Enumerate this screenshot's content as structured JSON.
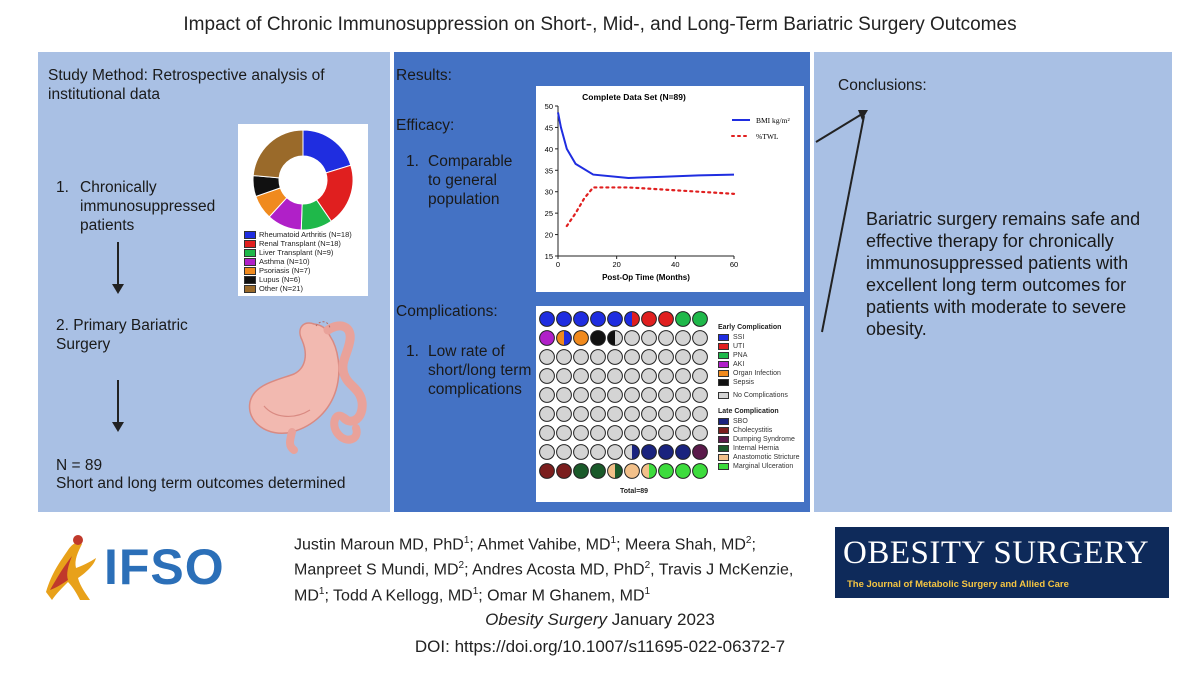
{
  "title": "Impact of Chronic Immunosuppression on Short-, Mid-, and Long-Term Bariatric Surgery Outcomes",
  "left": {
    "method": "Study Method: Retrospective analysis of institutional data",
    "step1_num": "1.",
    "step1": "Chronically immunosuppressed patients",
    "step2": "2. Primary Bariatric Surgery",
    "n": "N = 89",
    "outcome": "Short and long term outcomes determined",
    "donut_legend": [
      {
        "label": "Rheumatoid Arthritis (N=18)",
        "color": "#1f2de0"
      },
      {
        "label": "Renal Transplant (N=18)",
        "color": "#e01f1f"
      },
      {
        "label": "Liver Transplant (N=9)",
        "color": "#1fb84a"
      },
      {
        "label": "Asthma (N=10)",
        "color": "#b020c8"
      },
      {
        "label": "Psoriasis (N=7)",
        "color": "#f08a1e"
      },
      {
        "label": "Lupus (N=6)",
        "color": "#111111"
      },
      {
        "label": "Other (N=21)",
        "color": "#9a6a2a"
      }
    ],
    "donut_values": [
      18,
      18,
      9,
      10,
      7,
      6,
      21
    ]
  },
  "middle": {
    "results": "Results:",
    "efficacy": "Efficacy:",
    "eff_num": "1.",
    "eff_item": "Comparable to general population",
    "complications": "Complications:",
    "comp_num": "1.",
    "comp_item": "Low rate of short/long term complications"
  },
  "chart_data": {
    "type": "line",
    "title": "Complete Data Set (N=89)",
    "xlabel": "Post-Op Time (Months)",
    "ylabel": "",
    "xlim": [
      0,
      60
    ],
    "ylim": [
      15,
      50
    ],
    "xticks": [
      0,
      20,
      40,
      60
    ],
    "yticks": [
      15,
      20,
      25,
      30,
      35,
      40,
      45,
      50
    ],
    "series": [
      {
        "name": "BMI kg/m²",
        "style": "solid",
        "color": "#1f2de0",
        "x": [
          0,
          1,
          3,
          6,
          12,
          24,
          36,
          48,
          60
        ],
        "y": [
          48.5,
          45,
          40,
          36.5,
          34,
          33.2,
          33.5,
          33.8,
          34
        ]
      },
      {
        "name": "%TWL",
        "style": "dotted",
        "color": "#e01f1f",
        "x": [
          3,
          6,
          9,
          12,
          18,
          24,
          36,
          48,
          60
        ],
        "y": [
          22,
          25,
          28.5,
          31,
          31,
          31,
          30.5,
          30,
          29.5
        ]
      }
    ]
  },
  "grid": {
    "total": "Total=89",
    "early_title": "Early Complication",
    "early": [
      {
        "label": "SSI",
        "color": "#1f2de0"
      },
      {
        "label": "UTI",
        "color": "#e01f1f"
      },
      {
        "label": "PNA",
        "color": "#1fb84a"
      },
      {
        "label": "AKI",
        "color": "#b020c8"
      },
      {
        "label": "Organ Infection",
        "color": "#f08a1e"
      },
      {
        "label": "Sepsis",
        "color": "#111111"
      }
    ],
    "none_label": "No Complications",
    "none_color": "#d4d4d4",
    "late_title": "Late Complication",
    "late": [
      {
        "label": "SBO",
        "color": "#1a237e"
      },
      {
        "label": "Cholecystitis",
        "color": "#7b1e1e"
      },
      {
        "label": "Dumping Syndrome",
        "color": "#5a1a4a"
      },
      {
        "label": "Internal Hernia",
        "color": "#1a5a2a"
      },
      {
        "label": "Anastomotic Stricture",
        "color": "#f2c08a"
      },
      {
        "label": "Marginal Ulceration",
        "color": "#3ddc3d"
      }
    ]
  },
  "right": {
    "conclusions": "Conclusions:",
    "statement": "Bariatric surgery remains safe and effective therapy for chronically immunosuppressed patients with excellent long term outcomes for patients with moderate to severe obesity."
  },
  "footer": {
    "ifso": "IFSO",
    "authors_html": "Justin Maroun MD, PhD<sup>1</sup>; Ahmet Vahibe, MD<sup>1</sup>; Meera Shah, MD<sup>2</sup>; Manpreet S Mundi, MD<sup>2</sup>; Andres Acosta MD, PhD<sup>2</sup>, Travis J McKenzie, MD<sup>1</sup>; Todd A Kellogg, MD<sup>1</sup>; Omar M Ghanem, MD<sup>1</sup>",
    "journal_name": "OBESITY SURGERY",
    "journal_sub": "The Journal of Metabolic Surgery and Allied Care",
    "cite_journal": "Obesity Surgery",
    "cite_date": " January 2023",
    "doi": "DOI: https://doi.org/10.1007/s11695-022-06372-7"
  }
}
